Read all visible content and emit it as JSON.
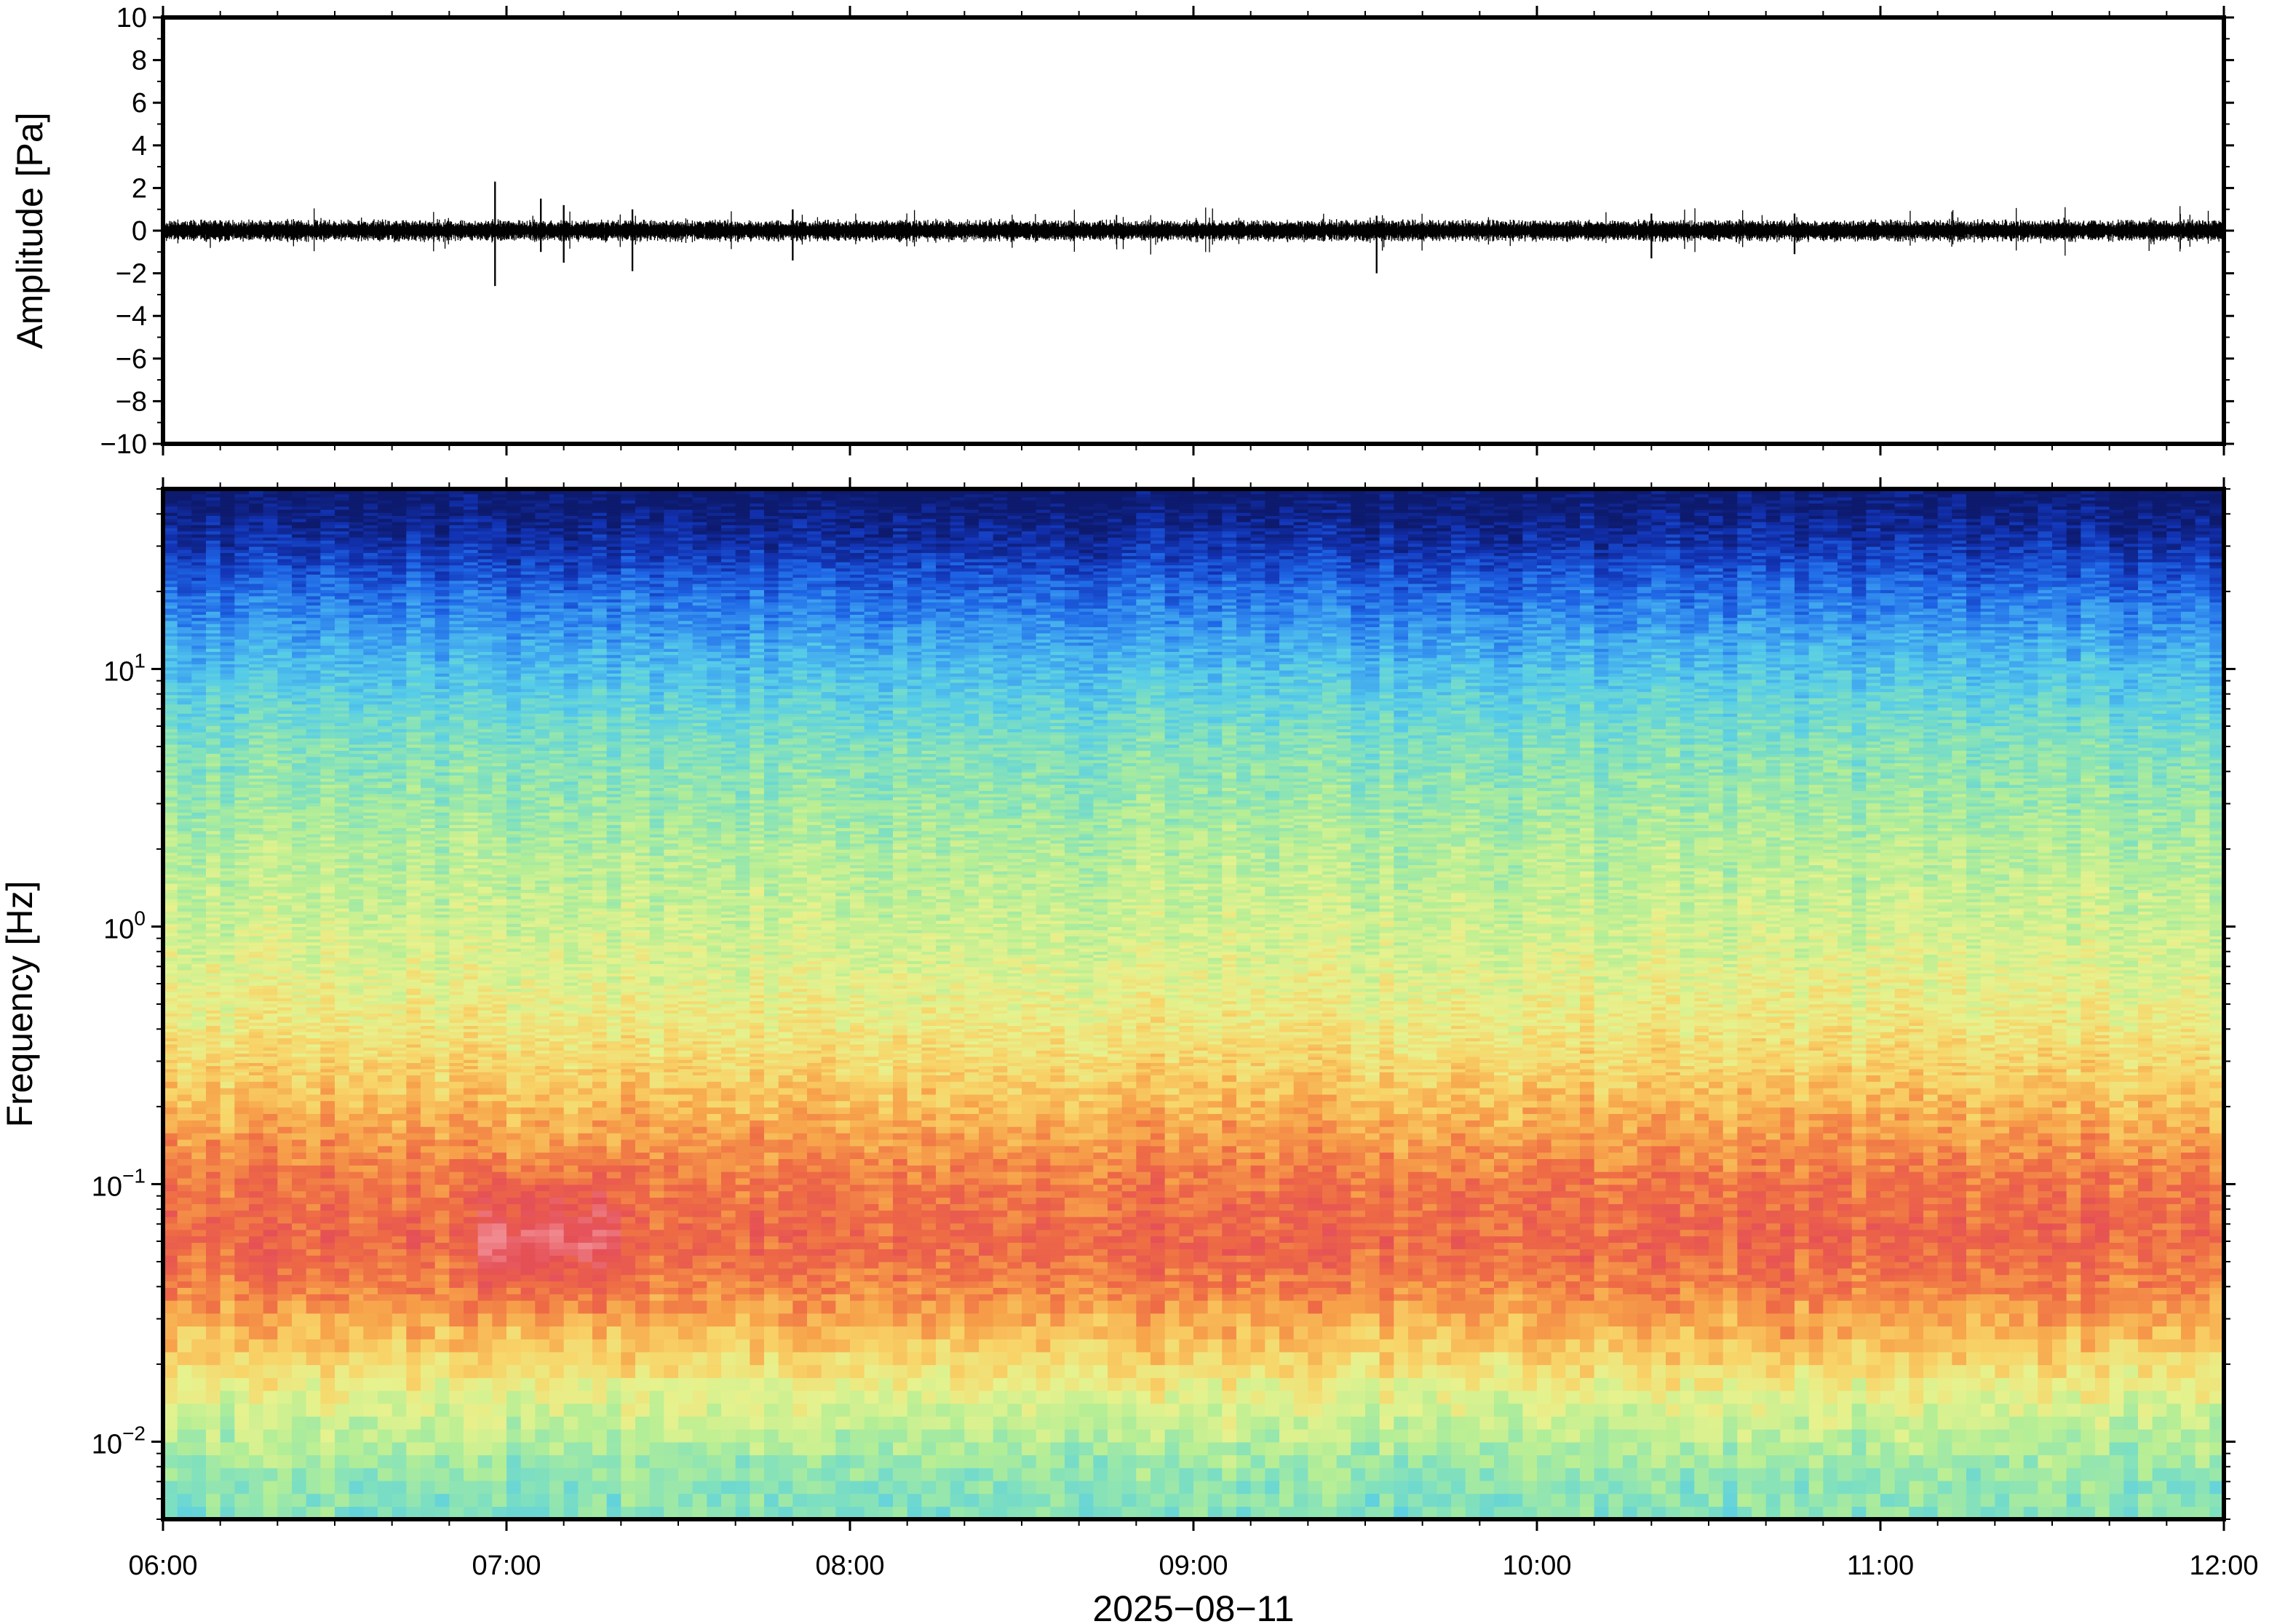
{
  "chart_data": [
    {
      "type": "line",
      "title": "",
      "xlabel": "",
      "ylabel": "Amplitude [Pa]",
      "ylim": [
        -10,
        10
      ],
      "yticks": [
        -10,
        -8,
        -6,
        -4,
        -2,
        0,
        2,
        4,
        6,
        8,
        10
      ],
      "ytick_labels": [
        "−10",
        "−8",
        "−6",
        "−4",
        "−2",
        "0",
        "2",
        "4",
        "6",
        "8",
        "10"
      ],
      "xlim": [
        "2025-08-11T06:00",
        "2025-08-11T12:00"
      ],
      "grid": false,
      "trace": {
        "baseline": 0.0,
        "typical_amplitude": 0.35,
        "color": "#000000",
        "bursts": [
          {
            "time": "2025-08-11T06:58",
            "min": -2.6,
            "max": 2.3
          },
          {
            "time": "2025-08-11T07:06",
            "min": -1.0,
            "max": 1.5
          },
          {
            "time": "2025-08-11T07:10",
            "min": -1.5,
            "max": 1.2
          },
          {
            "time": "2025-08-11T07:22",
            "min": -1.9,
            "max": 1.0
          },
          {
            "time": "2025-08-11T07:50",
            "min": -1.4,
            "max": 1.0
          },
          {
            "time": "2025-08-11T09:32",
            "min": -2.0,
            "max": 0.7
          },
          {
            "time": "2025-08-11T10:20",
            "min": -1.3,
            "max": 0.8
          },
          {
            "time": "2025-08-11T10:45",
            "min": -1.1,
            "max": 0.8
          }
        ]
      }
    },
    {
      "type": "heatmap",
      "title": "",
      "xlabel": "2025−08−11",
      "ylabel": "Frequency [Hz]",
      "yscale": "log",
      "ylim": [
        0.005,
        50
      ],
      "xlim": [
        "2025-08-11T06:00",
        "2025-08-11T12:00"
      ],
      "xticks": [
        "06:00",
        "07:00",
        "08:00",
        "09:00",
        "10:00",
        "11:00",
        "12:00"
      ],
      "ytick_base": "10",
      "ytick_exponents": [
        "−2",
        "−1",
        "0",
        "1"
      ],
      "yticks": [
        0.01,
        0.1,
        1,
        10
      ],
      "grid": false,
      "colormap": [
        "#0d1a6e",
        "#1233b4",
        "#1e66e6",
        "#3c9ff0",
        "#56cce8",
        "#7fe0bf",
        "#b5ee95",
        "#e6f28e",
        "#f8d468",
        "#f7a24a",
        "#ee6a45",
        "#e54f56",
        "#f08a90"
      ],
      "profile": [
        {
          "freq": 45,
          "level": 0.0
        },
        {
          "freq": 30,
          "level": 0.08
        },
        {
          "freq": 20,
          "level": 0.18
        },
        {
          "freq": 12,
          "level": 0.28
        },
        {
          "freq": 8,
          "level": 0.35
        },
        {
          "freq": 5,
          "level": 0.42
        },
        {
          "freq": 2,
          "level": 0.5
        },
        {
          "freq": 0.8,
          "level": 0.56
        },
        {
          "freq": 0.4,
          "level": 0.62
        },
        {
          "freq": 0.25,
          "level": 0.68
        },
        {
          "freq": 0.15,
          "level": 0.76
        },
        {
          "freq": 0.1,
          "level": 0.82
        },
        {
          "freq": 0.06,
          "level": 0.85
        },
        {
          "freq": 0.04,
          "level": 0.8
        },
        {
          "freq": 0.025,
          "level": 0.7
        },
        {
          "freq": 0.015,
          "level": 0.58
        },
        {
          "freq": 0.01,
          "level": 0.5
        },
        {
          "freq": 0.007,
          "level": 0.44
        },
        {
          "freq": 0.005,
          "level": 0.42
        }
      ],
      "hot_spots": [
        {
          "time_start": "2025-08-11T06:55",
          "time_end": "2025-08-11T07:20",
          "freq": 0.06,
          "boost": 0.12
        },
        {
          "time_start": "2025-08-11T10:40",
          "time_end": "2025-08-11T10:45",
          "freq": 0.03,
          "boost": 0.06
        }
      ]
    }
  ]
}
